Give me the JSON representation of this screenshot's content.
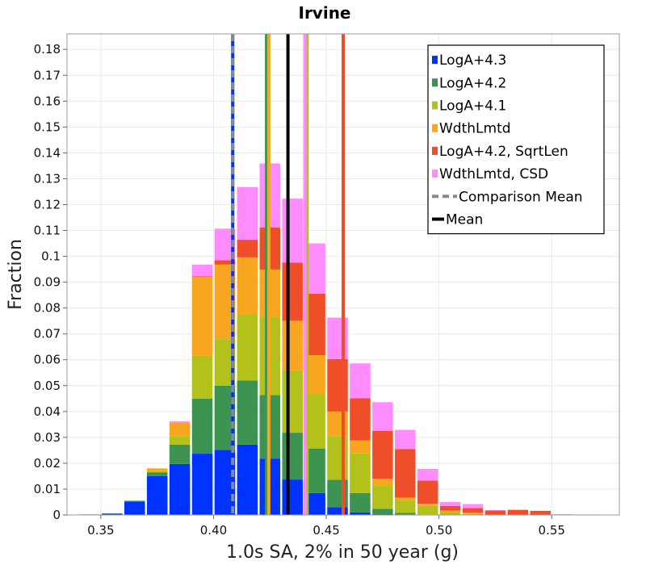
{
  "chart_data": {
    "type": "bar",
    "stacked": true,
    "title": "Irvine",
    "xlabel": "1.0s SA, 2% in 50 year (g)",
    "ylabel": "Fraction",
    "xlim": [
      0.335,
      0.58
    ],
    "ylim": [
      0,
      0.186
    ],
    "grid": true,
    "legend_position": "top-right",
    "bin_width": 0.01,
    "x_ticks": [
      "0.35",
      "0.40",
      "0.45",
      "0.50",
      "0.55"
    ],
    "x_tick_values": [
      0.35,
      0.4,
      0.45,
      0.5,
      0.55
    ],
    "y_ticks": [
      "0",
      "0.01",
      "0.02",
      "0.03",
      "0.04",
      "0.05",
      "0.06",
      "0.07",
      "0.08",
      "0.09",
      "0.1",
      "0.11",
      "0.12",
      "0.13",
      "0.14",
      "0.15",
      "0.16",
      "0.17",
      "0.18"
    ],
    "y_tick_values": [
      0,
      0.01,
      0.02,
      0.03,
      0.04,
      0.05,
      0.06,
      0.07,
      0.08,
      0.09,
      0.1,
      0.11,
      0.12,
      0.13,
      0.14,
      0.15,
      0.16,
      0.17,
      0.18
    ],
    "bin_centers": [
      0.345,
      0.355,
      0.365,
      0.375,
      0.385,
      0.395,
      0.405,
      0.415,
      0.425,
      0.435,
      0.445,
      0.455,
      0.465,
      0.475,
      0.485,
      0.495,
      0.505,
      0.515,
      0.525,
      0.535,
      0.545,
      0.555,
      0.565
    ],
    "series": [
      {
        "name": "LogA+4.3",
        "color": "#0033ff",
        "values": [
          0.0002,
          0.0005,
          0.0052,
          0.015,
          0.0197,
          0.0237,
          0.0252,
          0.0272,
          0.0218,
          0.0137,
          0.0085,
          0.003,
          0.001,
          0.0003,
          0.0001,
          0,
          0,
          0,
          0,
          0,
          0,
          0,
          0
        ]
      },
      {
        "name": "LogA+4.2",
        "color": "#3c9450",
        "values": [
          0,
          0.0001,
          0.0003,
          0.0015,
          0.0075,
          0.0213,
          0.0248,
          0.0248,
          0.0246,
          0.0181,
          0.0172,
          0.0106,
          0.0075,
          0.0021,
          0.0007,
          0.0002,
          0,
          0,
          0,
          0,
          0,
          0,
          0
        ]
      },
      {
        "name": "LogA+4.1",
        "color": "#b3c21a",
        "values": [
          0,
          0,
          0,
          0.0006,
          0.0033,
          0.0165,
          0.018,
          0.0254,
          0.0302,
          0.0241,
          0.0211,
          0.0169,
          0.0153,
          0.0091,
          0.0048,
          0.0033,
          0.0011,
          0.0004,
          0.0001,
          0,
          0,
          0,
          0
        ]
      },
      {
        "name": "WdthLmtd",
        "color": "#f8a61f",
        "values": [
          0,
          0,
          0,
          0.0009,
          0.0052,
          0.0305,
          0.0288,
          0.0222,
          0.0183,
          0.0192,
          0.015,
          0.0095,
          0.005,
          0.0025,
          0.0011,
          0.0008,
          0.0006,
          0.0005,
          0,
          0,
          0,
          0,
          0
        ]
      },
      {
        "name": "LogA+4.2, SqrtLen",
        "color": "#f04e28",
        "values": [
          0,
          0,
          0,
          0,
          0,
          0.0003,
          0.0017,
          0.0068,
          0.0163,
          0.0225,
          0.0238,
          0.0203,
          0.0163,
          0.0185,
          0.0188,
          0.009,
          0.0018,
          0.0018,
          0.0016,
          0.0019,
          0.0016,
          0.0002,
          0
        ]
      },
      {
        "name": "WdthLmtd, CSD",
        "color": "#ff8cff",
        "values": [
          0,
          0,
          0,
          0,
          0.0005,
          0.0045,
          0.0122,
          0.0204,
          0.0247,
          0.0247,
          0.0194,
          0.016,
          0.0135,
          0.0111,
          0.0074,
          0.0045,
          0.0015,
          0.0015,
          0.0002,
          0.0002,
          0,
          0.0001,
          0.0002
        ]
      }
    ],
    "means": [
      {
        "name": "LogA+4.3",
        "color": "#0033ff",
        "x": 0.4085
      },
      {
        "name": "LogA+4.2",
        "color": "#3c9450",
        "x": 0.4235
      },
      {
        "name": "LogA+4.1",
        "color": "#b3c21a",
        "x": 0.4415
      },
      {
        "name": "WdthLmtd",
        "color": "#f8a61f",
        "x": 0.4245
      },
      {
        "name": "LogA+4.2, SqrtLen",
        "color": "#f04e28",
        "x": 0.4575
      },
      {
        "name": "WdthLmtd, CSD",
        "color": "#ff8cff",
        "x": 0.4405
      }
    ],
    "comparison_mean": {
      "name": "Comparison Mean",
      "color": "#888888",
      "x": 0.4085
    },
    "mean": {
      "name": "Mean",
      "color": "#000000",
      "x": 0.433
    },
    "legend": [
      {
        "label": "LogA+4.3",
        "color": "#0033ff",
        "kind": "square"
      },
      {
        "label": "LogA+4.2",
        "color": "#3c9450",
        "kind": "square"
      },
      {
        "label": "LogA+4.1",
        "color": "#b3c21a",
        "kind": "square"
      },
      {
        "label": "WdthLmtd",
        "color": "#f8a61f",
        "kind": "square"
      },
      {
        "label": "LogA+4.2, SqrtLen",
        "color": "#f04e28",
        "kind": "square"
      },
      {
        "label": "WdthLmtd, CSD",
        "color": "#ff8cff",
        "kind": "square"
      },
      {
        "label": "Comparison Mean",
        "color": "#888888",
        "kind": "dashed"
      },
      {
        "label": "Mean",
        "color": "#000000",
        "kind": "solid"
      }
    ]
  }
}
